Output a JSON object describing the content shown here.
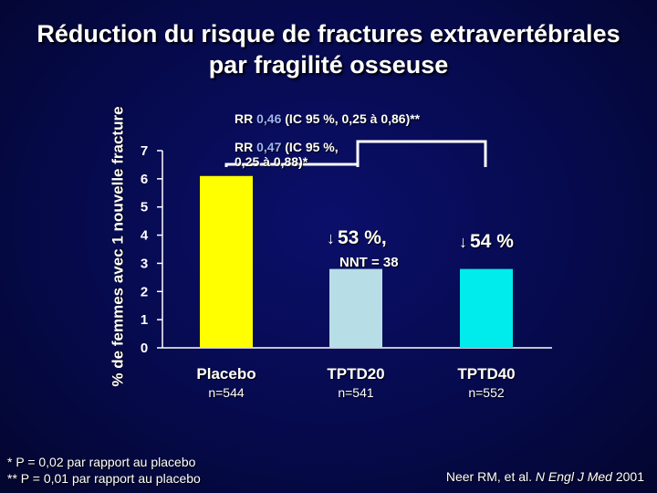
{
  "title_line1": "Réduction du risque de fractures extravertébrales",
  "title_line2": "par fragilité osseuse",
  "chart_data": {
    "type": "bar",
    "categories": [
      "Placebo",
      "TPTD20",
      "TPTD40"
    ],
    "values": [
      6.1,
      2.8,
      2.8
    ],
    "n_labels": [
      "n=544",
      "n=541",
      "n=552"
    ],
    "colors": [
      "#ffff00",
      "#b7dde6",
      "#00ebeb"
    ],
    "ylabel": "% de femmes avec 1 nouvelle fracture",
    "ylim": [
      0,
      7
    ],
    "yticks": [
      "0",
      "1",
      "2",
      "3",
      "4",
      "5",
      "6",
      "7"
    ],
    "annotations": {
      "rr_40_prefix": "RR ",
      "rr_40_value": "0,46",
      "rr_40_suffix": " (IC 95 %, 0,25 à 0,86)**",
      "rr_20_prefix": "RR ",
      "rr_20_value": "0,47",
      "rr_20_suffix": " (IC 95 %,",
      "rr_20_line2": "0,25 à 0,88)*",
      "reduction_20": "53 %,",
      "nnt_20": "NNT = 38",
      "reduction_40": "54 %"
    }
  },
  "footnote_line1": "* P = 0,02 par rapport au placebo",
  "footnote_line2": "** P = 0,01 par rapport au placebo",
  "citation_authors": "Neer RM, et al.",
  "citation_journal": "N Engl J Med",
  "citation_year": "2001"
}
